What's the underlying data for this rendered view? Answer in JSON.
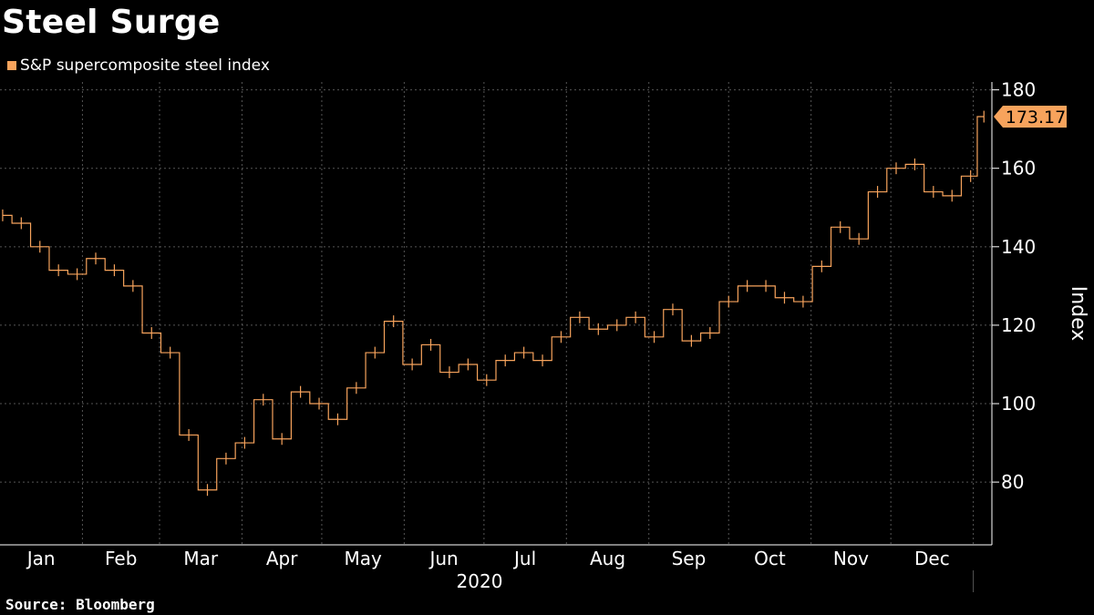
{
  "title": "Steel Surge",
  "legend_label": "S&P supercomposite steel index",
  "source": "Source:  Bloomberg",
  "colors": {
    "series": "#f7a35c",
    "background": "#000000",
    "grid": "#555555",
    "axis": "#ffffff"
  },
  "chart_data": {
    "type": "line",
    "style": "ohlc-bar",
    "title": "Steel Surge",
    "series": [
      {
        "name": "S&P supercomposite steel index",
        "x": [
          "2020-01-02",
          "2020-01-09",
          "2020-01-16",
          "2020-01-23",
          "2020-01-30",
          "2020-02-06",
          "2020-02-13",
          "2020-02-20",
          "2020-02-27",
          "2020-03-05",
          "2020-03-12",
          "2020-03-19",
          "2020-03-26",
          "2020-04-02",
          "2020-04-09",
          "2020-04-16",
          "2020-04-23",
          "2020-04-30",
          "2020-05-07",
          "2020-05-14",
          "2020-05-21",
          "2020-05-28",
          "2020-06-04",
          "2020-06-11",
          "2020-06-18",
          "2020-06-25",
          "2020-07-02",
          "2020-07-09",
          "2020-07-16",
          "2020-07-23",
          "2020-07-30",
          "2020-08-06",
          "2020-08-13",
          "2020-08-20",
          "2020-08-27",
          "2020-09-03",
          "2020-09-10",
          "2020-09-17",
          "2020-09-24",
          "2020-10-01",
          "2020-10-08",
          "2020-10-15",
          "2020-10-22",
          "2020-10-29",
          "2020-11-05",
          "2020-11-12",
          "2020-11-19",
          "2020-11-26",
          "2020-12-03",
          "2020-12-10",
          "2020-12-17",
          "2020-12-24",
          "2020-12-31",
          "2021-01-05"
        ],
        "values": [
          148,
          146,
          140,
          134,
          133,
          137,
          134,
          130,
          118,
          113,
          92,
          78,
          86,
          90,
          101,
          91,
          103,
          100,
          96,
          104,
          113,
          121,
          110,
          115,
          108,
          110,
          106,
          111,
          113,
          111,
          117,
          122,
          119,
          120,
          122,
          117,
          124,
          116,
          118,
          126,
          130,
          130,
          127,
          126,
          135,
          145,
          142,
          154,
          160,
          161,
          154,
          153,
          158,
          173.17
        ]
      }
    ],
    "last_value_label": "173.17",
    "x_ticks": [
      "Jan",
      "Feb",
      "Mar",
      "Apr",
      "May",
      "Jun",
      "Jul",
      "Aug",
      "Sep",
      "Oct",
      "Nov",
      "Dec"
    ],
    "x_year_label": "2020",
    "y_ticks": [
      "80",
      "100",
      "120",
      "140",
      "160",
      "180"
    ],
    "ylabel": "Index",
    "ylim": [
      64,
      182
    ],
    "xlim": [
      "2020-01-01",
      "2021-01-08"
    ],
    "grid": true,
    "legend_position": "top-left",
    "y_axis_side": "right"
  }
}
